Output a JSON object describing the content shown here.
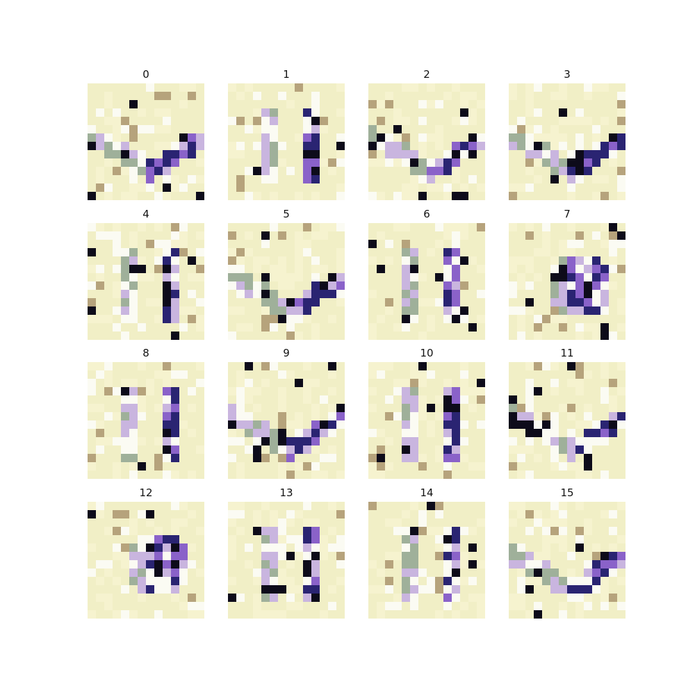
{
  "figure": {
    "background": "#ffffff",
    "panels": [
      {
        "label": "0"
      },
      {
        "label": "1"
      },
      {
        "label": "2"
      },
      {
        "label": "3"
      },
      {
        "label": "4"
      },
      {
        "label": "5"
      },
      {
        "label": "6"
      },
      {
        "label": "7"
      },
      {
        "label": "8"
      },
      {
        "label": "9"
      },
      {
        "label": "10"
      },
      {
        "label": "11"
      },
      {
        "label": "12"
      },
      {
        "label": "13"
      },
      {
        "label": "14"
      },
      {
        "label": "15"
      }
    ],
    "palette": {
      "background_cream": "#f1efc6",
      "pale_yellow": "#f6f3cf",
      "white": "#fbfbf3",
      "sage_green": "#9fb09a",
      "lavender": "#c9b5df",
      "violet": "#8a62c9",
      "navy": "#2a2472",
      "black": "#0d0b1a",
      "tan": "#b6a37c"
    }
  }
}
